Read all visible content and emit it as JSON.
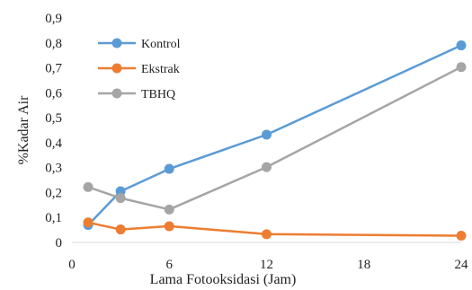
{
  "chart_data": {
    "type": "line",
    "title": "",
    "xlabel": "Lama Fotooksidasi (Jam)",
    "ylabel": "%Kadar Air",
    "xlim": [
      0,
      24
    ],
    "ylim": [
      0,
      0.9
    ],
    "x_ticks": [
      0,
      6,
      12,
      18,
      24
    ],
    "x_tick_labels": [
      "0",
      "6",
      "12",
      "18",
      "24"
    ],
    "y_ticks": [
      0,
      0.1,
      0.2,
      0.3,
      0.4,
      0.5,
      0.6,
      0.7,
      0.8,
      0.9
    ],
    "y_tick_labels": [
      "0",
      "0,1",
      "0,2",
      "0,3",
      "0,4",
      "0,5",
      "0,6",
      "0,7",
      "0,8",
      "0,9"
    ],
    "grid": false,
    "legend": "top-left",
    "series": [
      {
        "name": "Kontrol",
        "color": "#5b9bd5",
        "x": [
          1,
          3,
          6,
          12,
          24
        ],
        "y": [
          0.07,
          0.205,
          0.295,
          0.432,
          0.79
        ]
      },
      {
        "name": "Ekstrak",
        "color": "#ed7d31",
        "x": [
          1,
          3,
          6,
          12,
          24
        ],
        "y": [
          0.08,
          0.052,
          0.065,
          0.033,
          0.027
        ]
      },
      {
        "name": "TBHQ",
        "color": "#a5a5a5",
        "x": [
          1,
          3,
          6,
          12,
          24
        ],
        "y": [
          0.222,
          0.178,
          0.132,
          0.302,
          0.703
        ]
      }
    ]
  }
}
